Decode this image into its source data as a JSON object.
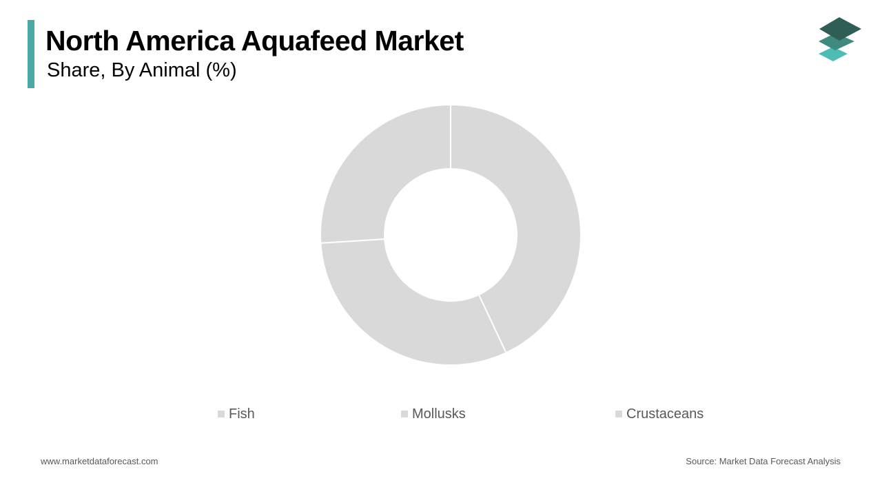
{
  "header": {
    "title": "North America Aquafeed Market",
    "subtitle": "Share, By Animal (%)"
  },
  "colors": {
    "accent": "#4aa9a4",
    "slice": "#d9d9d9",
    "separator": "#ffffff",
    "logo_top": "#2e5e55",
    "logo_mid": "#3f8a80",
    "logo_bottom": "#4dbdb3"
  },
  "logo": {
    "icon": "stacked-layers-icon"
  },
  "chart_data": {
    "type": "pie",
    "style": "donut",
    "categories": [
      "Fish",
      "Mollusks",
      "Crustaceans"
    ],
    "values": [
      43,
      31,
      26
    ],
    "unit": "%",
    "legend_position": "bottom",
    "data_labels": false
  },
  "footer": {
    "website": "www.marketdataforecast.com",
    "source": "Source: Market Data Forecast Analysis"
  }
}
